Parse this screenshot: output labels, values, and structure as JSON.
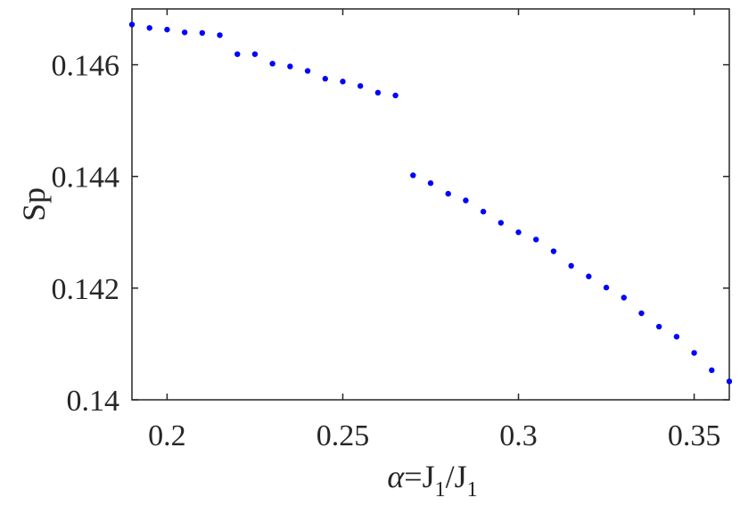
{
  "chart_data": {
    "type": "scatter",
    "xlabel": {
      "alpha": "α",
      "mid": "=J",
      "sub1": "1",
      "slash": "/J",
      "sub2": "1"
    },
    "ylabel": "Sp",
    "xlim": [
      0.19,
      0.36
    ],
    "ylim": [
      0.14,
      0.147
    ],
    "xticks": [
      0.2,
      0.25,
      0.3,
      0.35
    ],
    "xtick_labels": [
      "0.2",
      "0.25",
      "0.3",
      "0.35"
    ],
    "yticks": [
      0.14,
      0.142,
      0.144,
      0.146
    ],
    "ytick_labels": [
      "0.14",
      "0.142",
      "0.144",
      "0.146"
    ],
    "grid": false,
    "marker_color": "#0000ff",
    "series": [
      {
        "x": [
          0.19,
          0.195,
          0.2,
          0.205,
          0.21,
          0.215,
          0.22,
          0.225,
          0.23,
          0.235,
          0.24,
          0.245,
          0.25,
          0.255,
          0.26,
          0.265,
          0.27,
          0.275,
          0.28,
          0.285,
          0.29,
          0.295,
          0.3,
          0.305,
          0.31,
          0.315,
          0.32,
          0.325,
          0.33,
          0.335,
          0.34,
          0.345,
          0.35,
          0.355,
          0.36
        ],
        "y": [
          0.14672,
          0.14666,
          0.14663,
          0.14658,
          0.14657,
          0.14653,
          0.14619,
          0.14619,
          0.14602,
          0.14597,
          0.14589,
          0.14575,
          0.1457,
          0.14562,
          0.1455,
          0.14545,
          0.14402,
          0.14388,
          0.14369,
          0.14357,
          0.14337,
          0.14317,
          0.143,
          0.14287,
          0.14266,
          0.1424,
          0.14221,
          0.14201,
          0.14183,
          0.14155,
          0.14131,
          0.14113,
          0.14084,
          0.14053,
          0.14033
        ]
      }
    ]
  }
}
